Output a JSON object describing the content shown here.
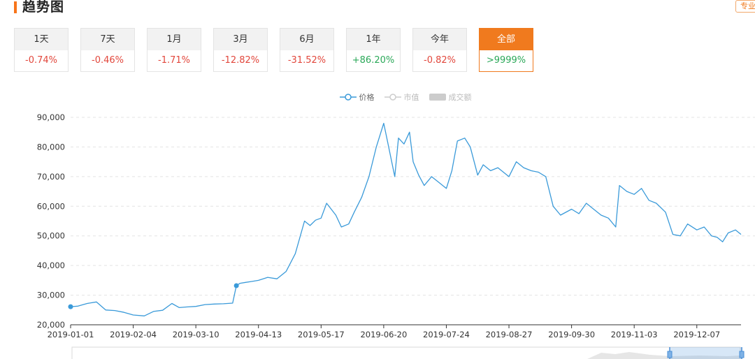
{
  "header": {
    "title": "趋势图",
    "pro_button": "专业"
  },
  "tabs": [
    {
      "label": "1天",
      "value": "-0.74%",
      "trend": "neg"
    },
    {
      "label": "7天",
      "value": "-0.46%",
      "trend": "neg"
    },
    {
      "label": "1月",
      "value": "-1.71%",
      "trend": "neg"
    },
    {
      "label": "3月",
      "value": "-12.82%",
      "trend": "neg"
    },
    {
      "label": "6月",
      "value": "-31.52%",
      "trend": "neg"
    },
    {
      "label": "1年",
      "value": "+86.20%",
      "trend": "pos"
    },
    {
      "label": "今年",
      "value": "-0.82%",
      "trend": "neg"
    },
    {
      "label": "全部",
      "value": ">9999%",
      "trend": "pos",
      "active": true
    }
  ],
  "legend": [
    {
      "label": "价格",
      "active": true
    },
    {
      "label": "市值",
      "active": false
    },
    {
      "label": "成交额",
      "active": false
    }
  ],
  "colors": {
    "accent": "#f07a1e",
    "line": "#3a9ad9",
    "negative": "#e2473c",
    "positive": "#2aa858"
  },
  "chart_data": {
    "type": "line",
    "series": [
      {
        "name": "价格"
      }
    ],
    "ylim": [
      20000,
      90000
    ],
    "yticks": [
      "20,000",
      "30,000",
      "40,000",
      "50,000",
      "60,000",
      "70,000",
      "80,000",
      "90,000"
    ],
    "xticks": [
      "2019-01-01",
      "2019-02-04",
      "2019-03-10",
      "2019-04-13",
      "2019-05-17",
      "2019-06-20",
      "2019-07-24",
      "2019-08-27",
      "2019-09-30",
      "2019-11-03",
      "2019-12-07"
    ],
    "grid": true,
    "legend_position": "top-center",
    "x": [
      "2019-01-01",
      "2019-01-05",
      "2019-01-10",
      "2019-01-15",
      "2019-01-20",
      "2019-01-25",
      "2019-01-30",
      "2019-02-04",
      "2019-02-10",
      "2019-02-15",
      "2019-02-20",
      "2019-02-25",
      "2019-03-01",
      "2019-03-05",
      "2019-03-10",
      "2019-03-15",
      "2019-03-20",
      "2019-03-25",
      "2019-03-30",
      "2019-04-01",
      "2019-04-03",
      "2019-04-06",
      "2019-04-09",
      "2019-04-13",
      "2019-04-18",
      "2019-04-23",
      "2019-04-28",
      "2019-05-03",
      "2019-05-08",
      "2019-05-11",
      "2019-05-14",
      "2019-05-17",
      "2019-05-20",
      "2019-05-25",
      "2019-05-28",
      "2019-06-01",
      "2019-06-04",
      "2019-06-08",
      "2019-06-12",
      "2019-06-16",
      "2019-06-20",
      "2019-06-22",
      "2019-06-26",
      "2019-06-28",
      "2019-07-01",
      "2019-07-04",
      "2019-07-06",
      "2019-07-09",
      "2019-07-12",
      "2019-07-16",
      "2019-07-20",
      "2019-07-24",
      "2019-07-27",
      "2019-07-30",
      "2019-08-03",
      "2019-08-06",
      "2019-08-10",
      "2019-08-13",
      "2019-08-17",
      "2019-08-21",
      "2019-08-27",
      "2019-08-31",
      "2019-09-04",
      "2019-09-08",
      "2019-09-12",
      "2019-09-16",
      "2019-09-20",
      "2019-09-24",
      "2019-09-30",
      "2019-10-04",
      "2019-10-08",
      "2019-10-12",
      "2019-10-16",
      "2019-10-20",
      "2019-10-24",
      "2019-10-26",
      "2019-10-30",
      "2019-11-03",
      "2019-11-07",
      "2019-11-11",
      "2019-11-15",
      "2019-11-20",
      "2019-11-24",
      "2019-11-28",
      "2019-12-02",
      "2019-12-07",
      "2019-12-11",
      "2019-12-15",
      "2019-12-18",
      "2019-12-21",
      "2019-12-24",
      "2019-12-28",
      "2019-12-31"
    ],
    "values": [
      26100,
      26300,
      27200,
      27700,
      25000,
      24800,
      24200,
      23300,
      23000,
      24500,
      24900,
      27200,
      25800,
      26000,
      26200,
      26800,
      27000,
      27100,
      27300,
      33200,
      34000,
      34300,
      34600,
      35000,
      36000,
      35500,
      38000,
      44000,
      55000,
      53500,
      55300,
      56000,
      61000,
      57000,
      53000,
      54000,
      58000,
      63000,
      70000,
      80000,
      88000,
      82000,
      70000,
      83000,
      81000,
      85000,
      75000,
      70500,
      67000,
      70000,
      68000,
      66000,
      72000,
      82000,
      83000,
      80000,
      70500,
      74000,
      72000,
      73000,
      70000,
      75000,
      73000,
      72000,
      71500,
      70000,
      60000,
      57000,
      59000,
      57500,
      61000,
      59000,
      57000,
      56000,
      53000,
      67000,
      65000,
      64000,
      66000,
      62000,
      61000,
      58000,
      50500,
      50000,
      54000,
      52000,
      53000,
      50000,
      49500,
      48000,
      51000,
      52000,
      50500
    ],
    "markers": [
      {
        "x": "2019-01-01",
        "y": 26100
      },
      {
        "x": "2019-04-01",
        "y": 33200
      }
    ]
  }
}
